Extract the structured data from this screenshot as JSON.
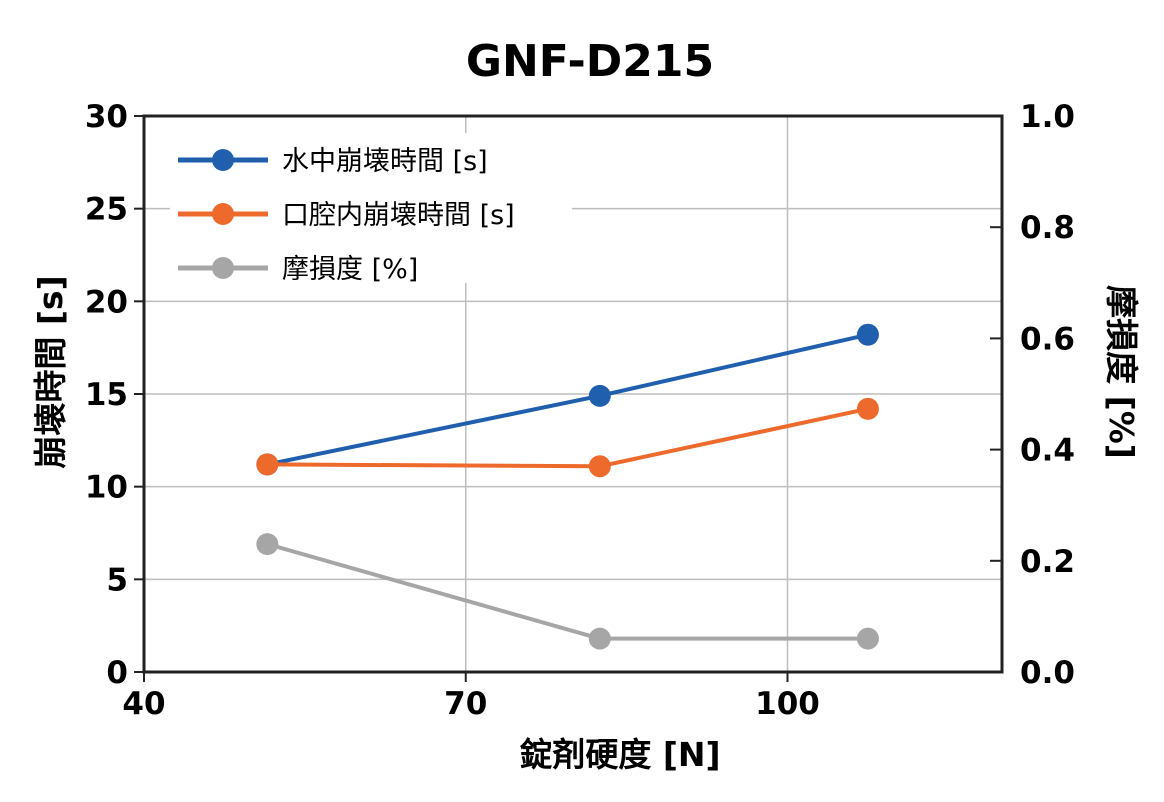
{
  "chart_data": {
    "type": "line",
    "title": "GNF-D215",
    "xlabel": "錠剤硬度 [N]",
    "ylabel": "崩壊時間 [s]",
    "y2label": "摩損度 [%]",
    "xlim": [
      40,
      120
    ],
    "ylim": [
      0,
      30
    ],
    "y2lim": [
      0,
      1.0
    ],
    "xticks": [
      "40",
      "70",
      "100"
    ],
    "xtick_values": [
      40,
      70,
      100
    ],
    "yticks": [
      "0",
      "5",
      "10",
      "15",
      "20",
      "25",
      "30"
    ],
    "ytick_values": [
      0,
      5,
      10,
      15,
      20,
      25,
      30
    ],
    "y2ticks": [
      "0.0",
      "0.2",
      "0.4",
      "0.6",
      "0.8",
      "1.0"
    ],
    "y2tick_values": [
      0,
      0.2,
      0.4,
      0.6,
      0.8,
      1.0
    ],
    "grid": true,
    "legend_position": "top-left",
    "series": [
      {
        "name": "水中崩壊時間 [s]",
        "axis": "left",
        "color": "#1f5fad",
        "x": [
          51.5,
          82.5,
          107.5
        ],
        "y": [
          11.2,
          14.9,
          18.2
        ]
      },
      {
        "name": "口腔内崩壊時間 [s]",
        "axis": "left",
        "color": "#ee6a2c",
        "x": [
          51.5,
          82.5,
          107.5
        ],
        "y": [
          11.2,
          11.1,
          14.2
        ]
      },
      {
        "name": "摩損度 [%]",
        "axis": "right",
        "color": "#a6a6a6",
        "x": [
          51.5,
          82.5,
          107.5
        ],
        "y": [
          0.23,
          0.06,
          0.06
        ]
      }
    ]
  }
}
